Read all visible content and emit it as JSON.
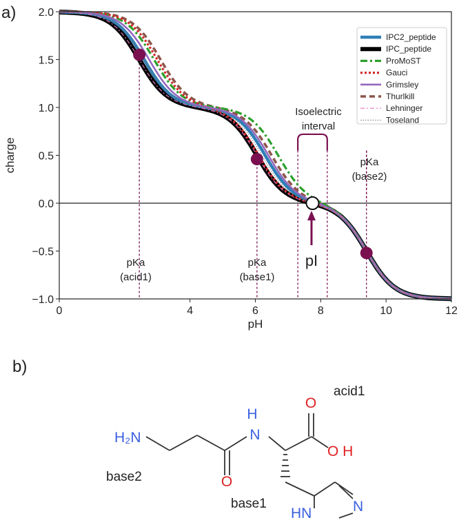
{
  "panel_a_label": "a)",
  "panel_b_label": "b)",
  "colors": {
    "IPC2_peptide": "#2f7fb6",
    "IPC_peptide": "#000000",
    "ProMoST": "#2aa02b",
    "Gauci": "#d42a2a",
    "Grimsley": "#9467bd",
    "Thurlkill": "#8c564b",
    "Lehninger": "#e377c2",
    "Toseland": "#7f7f7f",
    "marker": "#7a1050",
    "annotation": "#7a1050",
    "nitrogen": "#3a5fe0",
    "oxygen": "#e02020",
    "bond": "#333333"
  },
  "chart_data": {
    "type": "line",
    "xlabel": "pH",
    "ylabel": "charge",
    "xlim": [
      0,
      12
    ],
    "ylim": [
      -1.0,
      2.0
    ],
    "xticks": [
      0,
      4,
      6,
      8,
      10,
      12
    ],
    "yticks": [
      2.0,
      1.5,
      1.0,
      0.5,
      0.0,
      -0.5,
      -1.0
    ],
    "ytick_labels": [
      "2.0",
      "1.5",
      "1.0",
      "0.5",
      "0.0",
      "−0.5",
      "−1.0"
    ],
    "legend_position": "top-right",
    "series": [
      {
        "name": "IPC2_peptide",
        "pKa": [
          2.6,
          6.3,
          9.4
        ],
        "style": "solid-thick"
      },
      {
        "name": "IPC_peptide",
        "pKa": [
          2.45,
          6.05,
          9.4
        ],
        "style": "solid-heavy"
      },
      {
        "name": "ProMoST",
        "pKa": [
          2.9,
          6.7,
          9.4
        ],
        "style": "dashdot"
      },
      {
        "name": "Gauci",
        "pKa": [
          3.0,
          6.1,
          9.4
        ],
        "style": "dotted"
      },
      {
        "name": "Grimsley",
        "pKa": [
          2.75,
          6.4,
          9.4
        ],
        "style": "solid"
      },
      {
        "name": "Thurlkill",
        "pKa": [
          3.1,
          6.5,
          9.4
        ],
        "style": "dashed"
      },
      {
        "name": "Lehninger",
        "pKa": [
          2.45,
          6.05,
          9.4
        ],
        "style": "dashdot-thin"
      },
      {
        "name": "Toseland",
        "pKa": [
          2.6,
          6.2,
          9.4
        ],
        "style": "dotted-thin"
      }
    ],
    "points": [
      {
        "x": 2.45,
        "y": 1.55
      },
      {
        "x": 6.05,
        "y": 0.46
      },
      {
        "x": 9.4,
        "y": -0.52
      }
    ],
    "pI": {
      "x": 7.75,
      "y": 0.0
    },
    "vlines": [
      2.45,
      6.05,
      7.3,
      8.2,
      9.4
    ],
    "isoelectric_bracket": [
      7.3,
      8.2
    ],
    "annotations": {
      "isoelectric": [
        "Isoelectric",
        "interval"
      ],
      "pka_base2": [
        "pKa",
        "(base2)"
      ],
      "pka_acid1": [
        "pKa",
        "(acid1)"
      ],
      "pka_base1": [
        "pKa",
        "(base1)"
      ],
      "pI": "pI"
    }
  },
  "molecule": {
    "atoms": {
      "amine": "H₂N",
      "nh_h": "H",
      "nh_n": "N",
      "carbonyl_o_acid": "O",
      "oh": "O H",
      "amide_o": "O",
      "ring_n": "N",
      "ring_hn": "HN"
    },
    "labels": {
      "acid1": "acid1",
      "base2": "base2",
      "base1": "base1"
    }
  }
}
